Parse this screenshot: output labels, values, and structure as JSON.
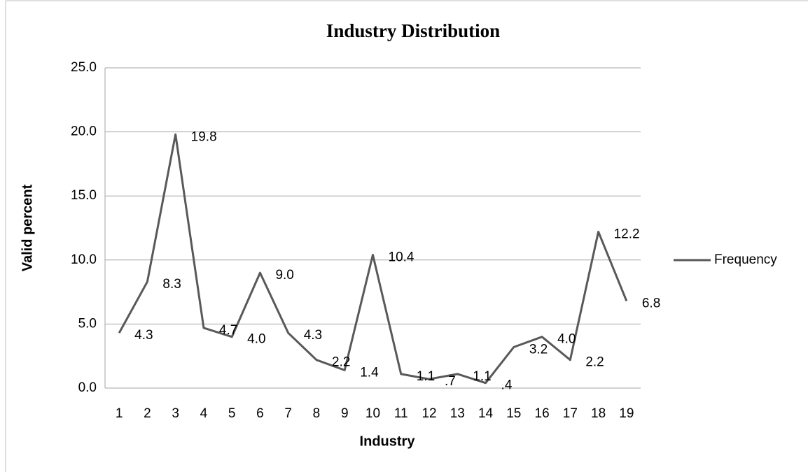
{
  "chart_data": {
    "type": "line",
    "title": "Industry Distribution",
    "x_label": "Industry",
    "y_label": "Valid percent",
    "categories": [
      "1",
      "2",
      "3",
      "4",
      "5",
      "6",
      "7",
      "8",
      "9",
      "10",
      "11",
      "12",
      "13",
      "14",
      "15",
      "16",
      "17",
      "18",
      "19"
    ],
    "series": [
      {
        "name": "Frequency",
        "color": "#595959",
        "values": [
          4.3,
          8.3,
          19.8,
          4.7,
          4.0,
          9.0,
          4.3,
          2.2,
          1.4,
          10.4,
          1.1,
          0.7,
          1.1,
          0.4,
          3.2,
          4.0,
          2.2,
          12.2,
          6.8
        ],
        "value_labels": [
          "4.3",
          "8.3",
          "19.8",
          "4.7",
          "4.0",
          "9.0",
          "4.3",
          "2.2",
          "1.4",
          "10.4",
          "1.1",
          ".7",
          "1.1",
          ".4",
          "3.2",
          "4.0",
          "2.2",
          "12.2",
          "6.8"
        ]
      }
    ],
    "ylim": [
      0,
      25
    ],
    "yticks": [
      {
        "value": 0,
        "label": "0.0"
      },
      {
        "value": 5,
        "label": "5.0"
      },
      {
        "value": 10,
        "label": "10.0"
      },
      {
        "value": 15,
        "label": "15.0"
      },
      {
        "value": 20,
        "label": "20.0"
      },
      {
        "value": 25,
        "label": "25.0"
      }
    ],
    "grid": true,
    "legend": "right"
  }
}
